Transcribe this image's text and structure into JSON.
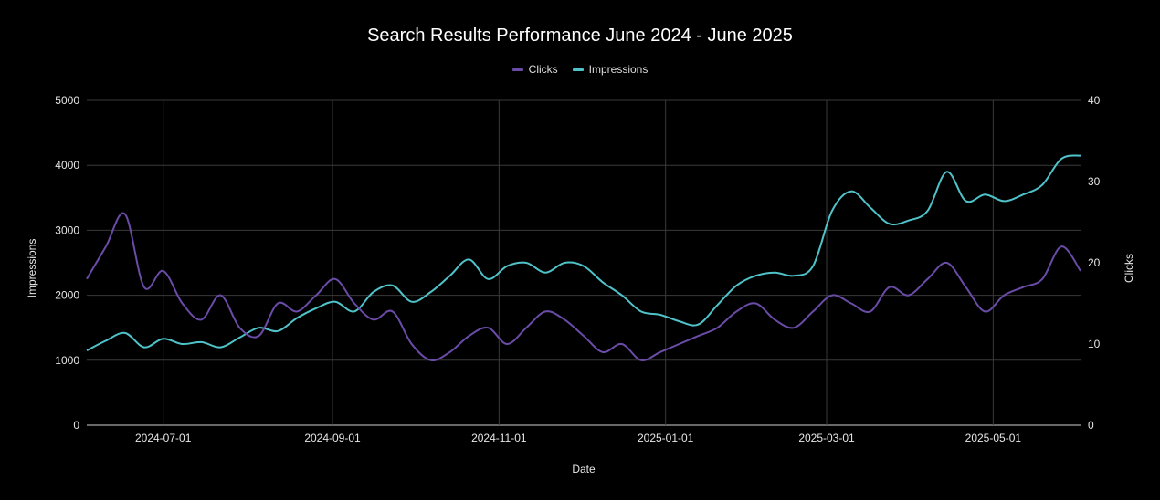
{
  "chart_data": {
    "type": "line",
    "title": "Search Results Performance June 2024 - June 2025",
    "xlabel": "Date",
    "ylabel_left": "Impressions",
    "ylabel_right": "Clicks",
    "x_range": [
      "2024-06-03",
      "2025-06-02"
    ],
    "x_tick_labels": [
      "2024-07-01",
      "2024-09-01",
      "2024-11-01",
      "2025-01-01",
      "2025-03-01",
      "2025-05-01"
    ],
    "y_left_range": [
      0,
      5000
    ],
    "y_left_ticks": [
      0,
      1000,
      2000,
      3000,
      4000,
      5000
    ],
    "y_right_range": [
      0,
      40
    ],
    "y_right_ticks": [
      0,
      10,
      20,
      30,
      40
    ],
    "grid": true,
    "legend_position": "top-center",
    "series": [
      {
        "name": "Impressions",
        "axis": "left",
        "color": "#4fc3c9",
        "points": [
          [
            "2024-06-03",
            1150
          ],
          [
            "2024-06-10",
            1300
          ],
          [
            "2024-06-17",
            1420
          ],
          [
            "2024-06-24",
            1200
          ],
          [
            "2024-07-01",
            1330
          ],
          [
            "2024-07-08",
            1250
          ],
          [
            "2024-07-15",
            1280
          ],
          [
            "2024-07-22",
            1200
          ],
          [
            "2024-07-29",
            1350
          ],
          [
            "2024-08-05",
            1500
          ],
          [
            "2024-08-12",
            1450
          ],
          [
            "2024-08-19",
            1650
          ],
          [
            "2024-08-26",
            1800
          ],
          [
            "2024-09-02",
            1900
          ],
          [
            "2024-09-09",
            1750
          ],
          [
            "2024-09-16",
            2050
          ],
          [
            "2024-09-23",
            2150
          ],
          [
            "2024-09-30",
            1900
          ],
          [
            "2024-10-07",
            2050
          ],
          [
            "2024-10-14",
            2300
          ],
          [
            "2024-10-21",
            2550
          ],
          [
            "2024-10-28",
            2250
          ],
          [
            "2024-11-04",
            2450
          ],
          [
            "2024-11-11",
            2500
          ],
          [
            "2024-11-18",
            2350
          ],
          [
            "2024-11-25",
            2500
          ],
          [
            "2024-12-02",
            2450
          ],
          [
            "2024-12-09",
            2200
          ],
          [
            "2024-12-16",
            2000
          ],
          [
            "2024-12-23",
            1750
          ],
          [
            "2024-12-30",
            1700
          ],
          [
            "2025-01-06",
            1600
          ],
          [
            "2025-01-13",
            1550
          ],
          [
            "2025-01-20",
            1850
          ],
          [
            "2025-01-27",
            2150
          ],
          [
            "2025-02-03",
            2300
          ],
          [
            "2025-02-10",
            2350
          ],
          [
            "2025-02-17",
            2300
          ],
          [
            "2025-02-24",
            2450
          ],
          [
            "2025-03-03",
            3300
          ],
          [
            "2025-03-10",
            3600
          ],
          [
            "2025-03-17",
            3350
          ],
          [
            "2025-03-24",
            3100
          ],
          [
            "2025-03-31",
            3150
          ],
          [
            "2025-04-07",
            3300
          ],
          [
            "2025-04-14",
            3900
          ],
          [
            "2025-04-21",
            3450
          ],
          [
            "2025-04-28",
            3550
          ],
          [
            "2025-05-05",
            3450
          ],
          [
            "2025-05-12",
            3550
          ],
          [
            "2025-05-19",
            3700
          ],
          [
            "2025-05-26",
            4100
          ],
          [
            "2025-06-02",
            4150
          ]
        ]
      },
      {
        "name": "Clicks",
        "axis": "right",
        "color": "#6a4ca8",
        "points": [
          [
            "2024-06-03",
            18
          ],
          [
            "2024-06-10",
            22
          ],
          [
            "2024-06-17",
            26
          ],
          [
            "2024-06-24",
            17
          ],
          [
            "2024-07-01",
            19
          ],
          [
            "2024-07-08",
            15
          ],
          [
            "2024-07-15",
            13
          ],
          [
            "2024-07-22",
            16
          ],
          [
            "2024-07-29",
            12
          ],
          [
            "2024-08-05",
            11
          ],
          [
            "2024-08-12",
            15
          ],
          [
            "2024-08-19",
            14
          ],
          [
            "2024-08-26",
            16
          ],
          [
            "2024-09-02",
            18
          ],
          [
            "2024-09-09",
            15
          ],
          [
            "2024-09-16",
            13
          ],
          [
            "2024-09-23",
            14
          ],
          [
            "2024-09-30",
            10
          ],
          [
            "2024-10-07",
            8
          ],
          [
            "2024-10-14",
            9
          ],
          [
            "2024-10-21",
            11
          ],
          [
            "2024-10-28",
            12
          ],
          [
            "2024-11-04",
            10
          ],
          [
            "2024-11-11",
            12
          ],
          [
            "2024-11-18",
            14
          ],
          [
            "2024-11-25",
            13
          ],
          [
            "2024-12-02",
            11
          ],
          [
            "2024-12-09",
            9
          ],
          [
            "2024-12-16",
            10
          ],
          [
            "2024-12-23",
            8
          ],
          [
            "2024-12-30",
            9
          ],
          [
            "2025-01-06",
            10
          ],
          [
            "2025-01-13",
            11
          ],
          [
            "2025-01-20",
            12
          ],
          [
            "2025-01-27",
            14
          ],
          [
            "2025-02-03",
            15
          ],
          [
            "2025-02-10",
            13
          ],
          [
            "2025-02-17",
            12
          ],
          [
            "2025-02-24",
            14
          ],
          [
            "2025-03-03",
            16
          ],
          [
            "2025-03-10",
            15
          ],
          [
            "2025-03-17",
            14
          ],
          [
            "2025-03-24",
            17
          ],
          [
            "2025-03-31",
            16
          ],
          [
            "2025-04-07",
            18
          ],
          [
            "2025-04-14",
            20
          ],
          [
            "2025-04-21",
            17
          ],
          [
            "2025-04-28",
            14
          ],
          [
            "2025-05-05",
            16
          ],
          [
            "2025-05-12",
            17
          ],
          [
            "2025-05-19",
            18
          ],
          [
            "2025-05-26",
            22
          ],
          [
            "2025-06-02",
            19
          ]
        ]
      }
    ]
  }
}
